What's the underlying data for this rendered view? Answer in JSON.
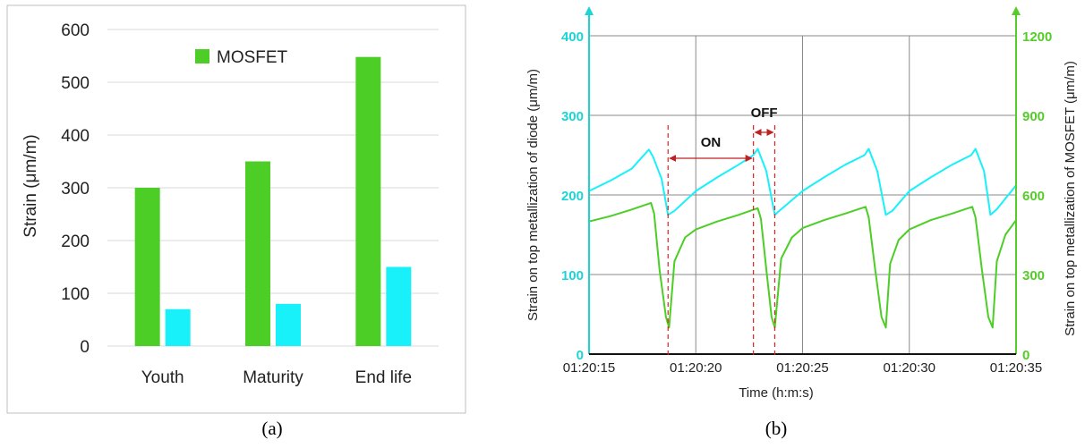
{
  "colors": {
    "mosfet": "#4cce26",
    "diode": "#18f0fa",
    "right_axis": "#55cc2a",
    "left_axis": "#1dd4d4",
    "marker": "#e02020",
    "arrow": "#c02020",
    "grid": "#8a8a8a"
  },
  "chart_data": [
    {
      "type": "bar",
      "caption": "(a)",
      "categories": [
        "Youth",
        "Maturity",
        "End life"
      ],
      "series": [
        {
          "name": "MOSFET",
          "values": [
            300,
            350,
            548
          ]
        },
        {
          "name": "",
          "values": [
            70,
            80,
            150
          ]
        }
      ],
      "ylabel": "Strain (μm/m)",
      "ylim": [
        0,
        600
      ],
      "yticks": [
        "0",
        "100",
        "200",
        "300",
        "400",
        "500",
        "600"
      ],
      "legend_position": "top-center",
      "grid": true
    },
    {
      "type": "line",
      "caption": "(b)",
      "xlabel": "Time (h:m:s)",
      "xticks": [
        "01:20:15",
        "01:20:20",
        "01:20:25",
        "01:20:30",
        "01:20:35"
      ],
      "xlim_seconds": [
        15,
        35
      ],
      "left_axis": {
        "label": "Strain on top metallization of diode (μm/m)",
        "ylim": [
          0,
          400
        ],
        "ticks": [
          "0",
          "100",
          "200",
          "300",
          "400"
        ]
      },
      "right_axis": {
        "label": "Strain on top metallization of MOSFET (μm/m)",
        "ylim": [
          0,
          1200
        ],
        "ticks": [
          "0",
          "300",
          "600",
          "900",
          "1200"
        ]
      },
      "series": [
        {
          "axis": "left",
          "x": [
            15,
            16,
            17,
            17.8,
            18,
            18.4,
            18.7,
            19,
            20,
            21,
            22,
            22.7,
            22.9,
            23.3,
            23.7,
            24,
            25,
            26,
            27,
            27.9,
            28.1,
            28.5,
            28.9,
            29.2,
            30,
            31,
            32,
            32.9,
            33.1,
            33.5,
            33.8,
            34.1,
            35
          ],
          "y": [
            205,
            218,
            233,
            257,
            248,
            220,
            175,
            180,
            205,
            222,
            238,
            250,
            258,
            230,
            175,
            182,
            205,
            222,
            238,
            250,
            258,
            230,
            175,
            180,
            205,
            222,
            238,
            250,
            258,
            230,
            175,
            182,
            212
          ]
        },
        {
          "axis": "right",
          "x": [
            15,
            16,
            17,
            17.9,
            18.05,
            18.3,
            18.6,
            18.75,
            19,
            19.5,
            20,
            21,
            22,
            22.9,
            23.05,
            23.3,
            23.55,
            23.7,
            24,
            24.5,
            25,
            26,
            27,
            27.95,
            28.1,
            28.4,
            28.7,
            28.9,
            29.1,
            29.5,
            30,
            31,
            32,
            32.95,
            33.1,
            33.4,
            33.7,
            33.9,
            34.1,
            34.5,
            35
          ],
          "y": [
            500,
            520,
            545,
            570,
            530,
            320,
            140,
            100,
            350,
            440,
            470,
            500,
            525,
            550,
            510,
            320,
            140,
            100,
            360,
            440,
            475,
            505,
            530,
            555,
            515,
            320,
            140,
            100,
            340,
            430,
            470,
            505,
            530,
            555,
            515,
            320,
            140,
            100,
            350,
            450,
            505
          ]
        }
      ],
      "annotations": [
        {
          "text": "ON",
          "from": 18.7,
          "to": 22.7
        },
        {
          "text": "OFF",
          "from": 22.7,
          "to": 23.7
        }
      ],
      "markers_x": [
        18.7,
        22.7,
        23.7
      ],
      "grid": true
    }
  ]
}
